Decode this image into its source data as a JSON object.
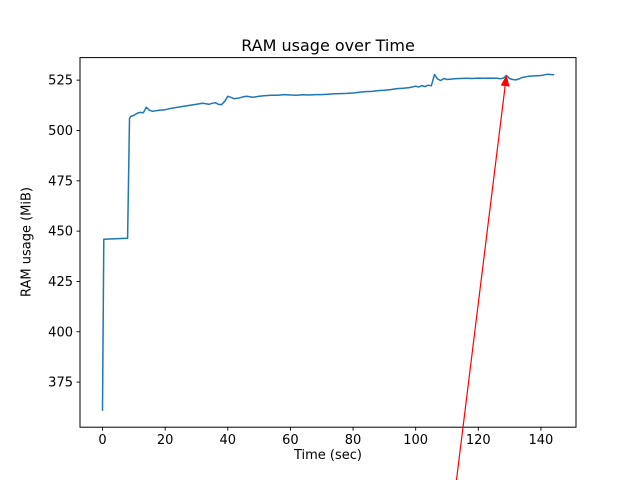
{
  "figure": {
    "background": "#ffffff"
  },
  "chart_data": {
    "type": "line",
    "title": "RAM usage over Time",
    "xlabel": "Time (sec)",
    "ylabel": "RAM usage (MiB)",
    "xlim": [
      -7.2,
      151.2
    ],
    "ylim": [
      352.6,
      536.2
    ],
    "xticks": [
      0,
      20,
      40,
      60,
      80,
      100,
      120,
      140
    ],
    "yticks": [
      375,
      400,
      425,
      450,
      475,
      500,
      525
    ],
    "grid": false,
    "legend_position": "none",
    "series": [
      {
        "name": "RAM usage",
        "color": "#1f77b4",
        "points": [
          [
            0,
            361
          ],
          [
            0.4,
            446
          ],
          [
            8,
            446.5
          ],
          [
            8.6,
            506
          ],
          [
            9,
            507
          ],
          [
            10,
            507.5
          ],
          [
            11,
            508.5
          ],
          [
            12,
            509
          ],
          [
            13,
            508.8
          ],
          [
            14,
            511.5
          ],
          [
            15,
            510
          ],
          [
            16,
            509.5
          ],
          [
            17,
            509.8
          ],
          [
            18,
            510
          ],
          [
            20,
            510.3
          ],
          [
            22,
            511
          ],
          [
            24,
            511.5
          ],
          [
            26,
            512
          ],
          [
            28,
            512.5
          ],
          [
            30,
            513
          ],
          [
            32,
            513.5
          ],
          [
            34,
            513
          ],
          [
            35,
            513.5
          ],
          [
            36,
            513.8
          ],
          [
            37,
            513
          ],
          [
            38,
            512.8
          ],
          [
            39,
            514.5
          ],
          [
            40,
            517
          ],
          [
            41,
            516.5
          ],
          [
            42,
            515.8
          ],
          [
            43,
            516
          ],
          [
            44,
            516.3
          ],
          [
            45,
            516.8
          ],
          [
            46,
            517
          ],
          [
            48,
            516.5
          ],
          [
            50,
            517
          ],
          [
            52,
            517.3
          ],
          [
            54,
            517.5
          ],
          [
            56,
            517.5
          ],
          [
            58,
            517.8
          ],
          [
            60,
            517.6
          ],
          [
            62,
            517.5
          ],
          [
            64,
            517.7
          ],
          [
            66,
            517.6
          ],
          [
            68,
            517.8
          ],
          [
            70,
            517.8
          ],
          [
            72,
            518
          ],
          [
            74,
            518.2
          ],
          [
            76,
            518.3
          ],
          [
            78,
            518.4
          ],
          [
            80,
            518.6
          ],
          [
            82,
            519
          ],
          [
            84,
            519.3
          ],
          [
            86,
            519.4
          ],
          [
            88,
            519.8
          ],
          [
            90,
            520
          ],
          [
            92,
            520.3
          ],
          [
            94,
            520.8
          ],
          [
            96,
            521
          ],
          [
            98,
            521.3
          ],
          [
            100,
            522
          ],
          [
            101,
            521.6
          ],
          [
            102,
            522.3
          ],
          [
            103,
            521.8
          ],
          [
            104,
            522.5
          ],
          [
            105,
            522.2
          ],
          [
            106,
            527.8
          ],
          [
            107,
            525.5
          ],
          [
            108,
            524.8
          ],
          [
            109,
            525.8
          ],
          [
            110,
            525.3
          ],
          [
            112,
            525.6
          ],
          [
            114,
            525.8
          ],
          [
            116,
            525.9
          ],
          [
            118,
            525.8
          ],
          [
            120,
            526
          ],
          [
            122,
            525.9
          ],
          [
            124,
            526
          ],
          [
            126,
            525.9
          ],
          [
            127,
            525.7
          ],
          [
            128,
            526
          ],
          [
            129,
            527.3
          ],
          [
            130,
            525.8
          ],
          [
            131,
            525.3
          ],
          [
            132,
            525.1
          ],
          [
            133,
            525.6
          ],
          [
            134,
            526.3
          ],
          [
            136,
            526.9
          ],
          [
            138,
            527.1
          ],
          [
            140,
            527.3
          ],
          [
            142,
            527.9
          ],
          [
            144,
            527.7
          ]
        ]
      }
    ],
    "annotation": {
      "type": "arrow",
      "color": "#ff0000",
      "tip": [
        129,
        527.5
      ],
      "tail": [
        113,
        326
      ]
    }
  }
}
